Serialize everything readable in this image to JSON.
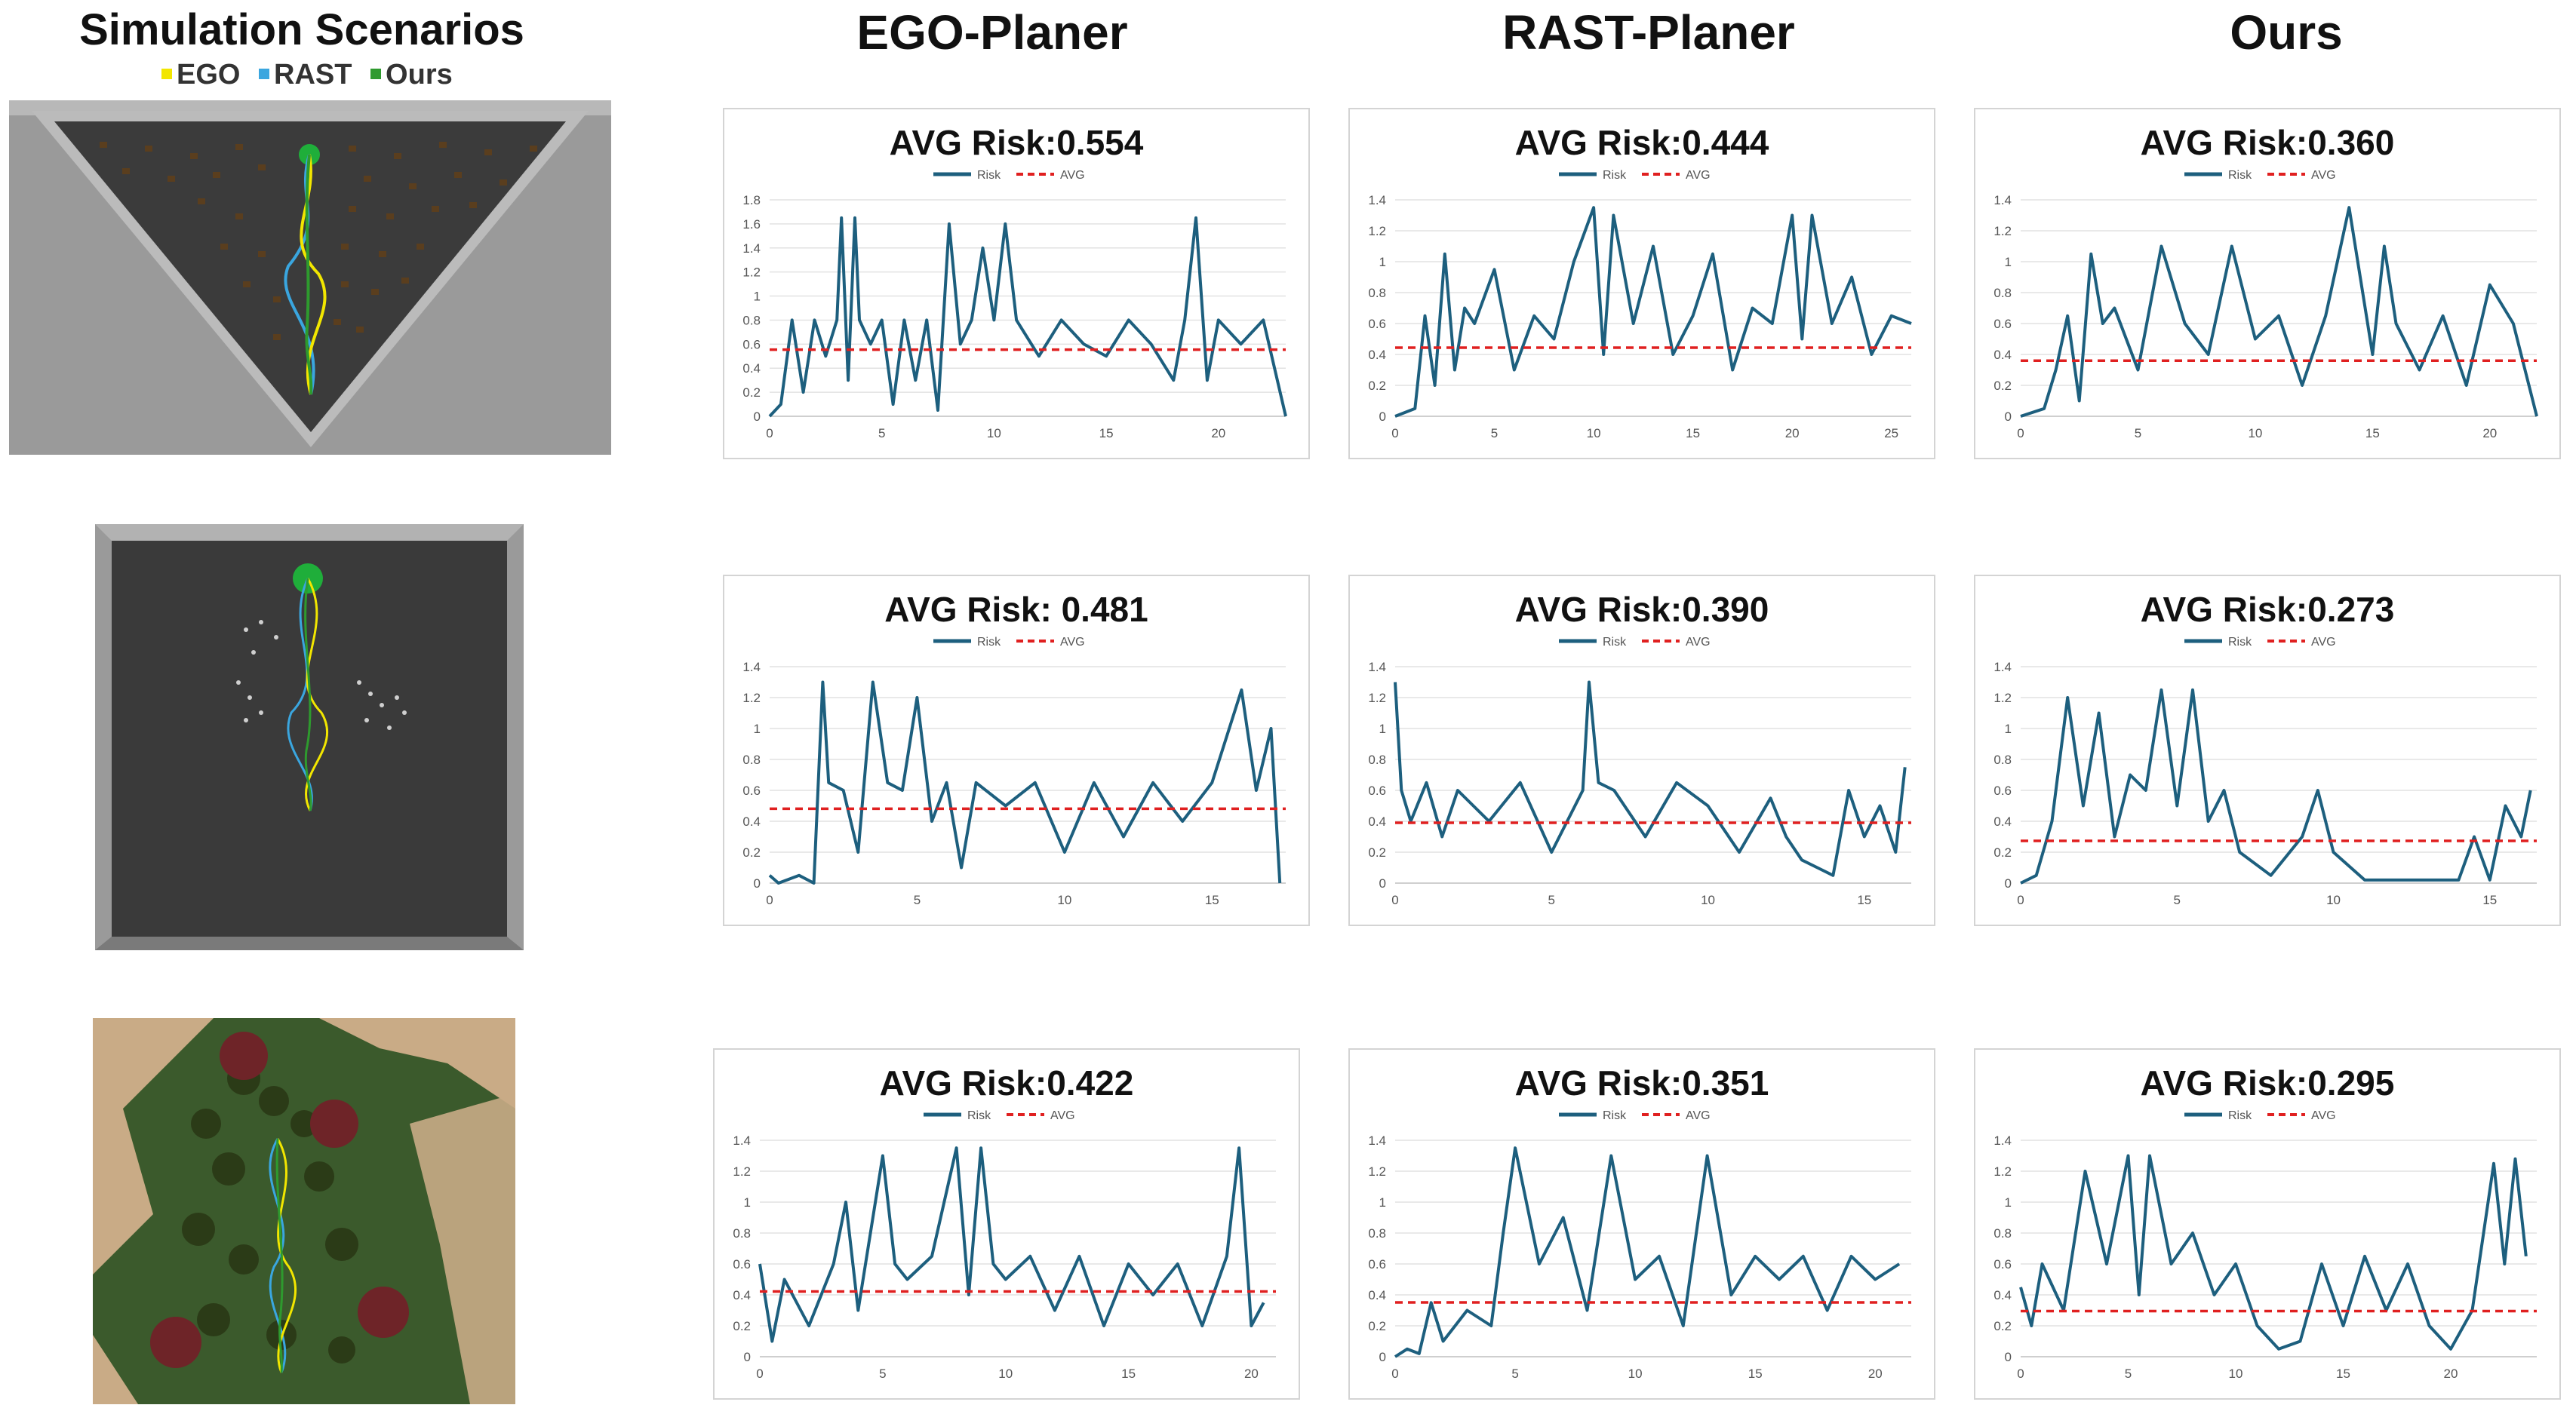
{
  "header": {
    "scenarios_title": "Simulation Scenarios",
    "columns": [
      "EGO-Planer",
      "RAST-Planer",
      "Ours"
    ],
    "legend": [
      {
        "label": "EGO",
        "color": "#f2e600"
      },
      {
        "label": "RAST",
        "color": "#3aa6df"
      },
      {
        "label": "Ours",
        "color": "#2e9a2e"
      }
    ]
  },
  "colors": {
    "risk_line": "#1d5f7e",
    "avg_line": "#e02020",
    "grid": "#e2e2e2"
  },
  "chart_data": [
    {
      "type": "line",
      "row": 0,
      "planner": "EGO-Planer",
      "title": "AVG Risk:0.554",
      "legend": [
        "Risk",
        "AVG"
      ],
      "avg": 0.554,
      "xlim": [
        0,
        23
      ],
      "ylim": [
        0,
        1.8
      ],
      "xticks": [
        0,
        5,
        10,
        15,
        20
      ],
      "yticks": [
        0,
        0.2,
        0.4,
        0.6,
        0.8,
        1,
        1.2,
        1.4,
        1.6,
        1.8
      ],
      "series": [
        {
          "name": "Risk",
          "x": [
            0,
            0.5,
            1,
            1.5,
            2,
            2.5,
            3,
            3.2,
            3.5,
            3.8,
            4,
            4.5,
            5,
            5.5,
            6,
            6.5,
            7,
            7.5,
            8,
            8.5,
            9,
            9.5,
            10,
            10.5,
            11,
            12,
            13,
            14,
            15,
            16,
            17,
            18,
            18.5,
            19,
            19.5,
            20,
            21,
            22,
            23
          ],
          "y": [
            0,
            0.1,
            0.8,
            0.2,
            0.8,
            0.5,
            0.8,
            1.65,
            0.3,
            1.65,
            0.8,
            0.6,
            0.8,
            0.1,
            0.8,
            0.3,
            0.8,
            0.05,
            1.6,
            0.6,
            0.8,
            1.4,
            0.8,
            1.6,
            0.8,
            0.5,
            0.8,
            0.6,
            0.5,
            0.8,
            0.6,
            0.3,
            0.8,
            1.65,
            0.3,
            0.8,
            0.6,
            0.8,
            0
          ]
        },
        {
          "name": "AVG",
          "x": [
            0,
            23
          ],
          "y": [
            0.554,
            0.554
          ]
        }
      ]
    },
    {
      "type": "line",
      "row": 0,
      "planner": "RAST-Planer",
      "title": "AVG Risk:0.444",
      "legend": [
        "Risk",
        "AVG"
      ],
      "avg": 0.444,
      "xlim": [
        0,
        26
      ],
      "ylim": [
        0,
        1.4
      ],
      "xticks": [
        0,
        5,
        10,
        15,
        20,
        25
      ],
      "yticks": [
        0,
        0.2,
        0.4,
        0.6,
        0.8,
        1,
        1.2,
        1.4
      ],
      "series": [
        {
          "name": "Risk",
          "x": [
            0,
            1,
            1.5,
            2,
            2.5,
            3,
            3.5,
            4,
            5,
            6,
            7,
            8,
            9,
            10,
            10.5,
            11,
            12,
            13,
            14,
            15,
            16,
            17,
            18,
            19,
            20,
            20.5,
            21,
            22,
            23,
            24,
            25,
            26
          ],
          "y": [
            0,
            0.05,
            0.65,
            0.2,
            1.05,
            0.3,
            0.7,
            0.6,
            0.95,
            0.3,
            0.65,
            0.5,
            1.0,
            1.35,
            0.4,
            1.3,
            0.6,
            1.1,
            0.4,
            0.65,
            1.05,
            0.3,
            0.7,
            0.6,
            1.3,
            0.5,
            1.3,
            0.6,
            0.9,
            0.4,
            0.65,
            0.6
          ]
        },
        {
          "name": "AVG",
          "x": [
            0,
            26
          ],
          "y": [
            0.444,
            0.444
          ]
        }
      ]
    },
    {
      "type": "line",
      "row": 0,
      "planner": "Ours",
      "title": "AVG Risk:0.360",
      "legend": [
        "Risk",
        "AVG"
      ],
      "avg": 0.36,
      "xlim": [
        0,
        22
      ],
      "ylim": [
        0,
        1.4
      ],
      "xticks": [
        0,
        5,
        10,
        15,
        20
      ],
      "yticks": [
        0,
        0.2,
        0.4,
        0.6,
        0.8,
        1,
        1.2,
        1.4
      ],
      "series": [
        {
          "name": "Risk",
          "x": [
            0,
            1,
            1.5,
            2,
            2.5,
            3,
            3.5,
            4,
            5,
            6,
            7,
            8,
            9,
            10,
            11,
            12,
            13,
            14,
            15,
            15.5,
            16,
            17,
            18,
            19,
            20,
            21,
            22
          ],
          "y": [
            0,
            0.05,
            0.3,
            0.65,
            0.1,
            1.05,
            0.6,
            0.7,
            0.3,
            1.1,
            0.6,
            0.4,
            1.1,
            0.5,
            0.65,
            0.2,
            0.65,
            1.35,
            0.4,
            1.1,
            0.6,
            0.3,
            0.65,
            0.2,
            0.85,
            0.6,
            0
          ]
        },
        {
          "name": "AVG",
          "x": [
            0,
            22
          ],
          "y": [
            0.36,
            0.36
          ]
        }
      ]
    },
    {
      "type": "line",
      "row": 1,
      "planner": "EGO-Planer",
      "title": "AVG Risk: 0.481",
      "legend": [
        "Risk",
        "AVG"
      ],
      "avg": 0.481,
      "xlim": [
        0,
        17.5
      ],
      "ylim": [
        0,
        1.4
      ],
      "xticks": [
        0,
        5,
        10,
        15
      ],
      "yticks": [
        0,
        0.2,
        0.4,
        0.6,
        0.8,
        1,
        1.2,
        1.4
      ],
      "series": [
        {
          "name": "Risk",
          "x": [
            0,
            0.3,
            1,
            1.5,
            1.8,
            2,
            2.5,
            3,
            3.5,
            4,
            4.5,
            5,
            5.5,
            6,
            6.5,
            7,
            8,
            9,
            10,
            11,
            12,
            13,
            14,
            15,
            16,
            16.5,
            17,
            17.3
          ],
          "y": [
            0.05,
            0,
            0.05,
            0,
            1.3,
            0.65,
            0.6,
            0.2,
            1.3,
            0.65,
            0.6,
            1.2,
            0.4,
            0.65,
            0.1,
            0.65,
            0.5,
            0.65,
            0.2,
            0.65,
            0.3,
            0.65,
            0.4,
            0.65,
            1.25,
            0.6,
            1.0,
            0
          ]
        },
        {
          "name": "AVG",
          "x": [
            0,
            17.5
          ],
          "y": [
            0.481,
            0.481
          ]
        }
      ]
    },
    {
      "type": "line",
      "row": 1,
      "planner": "RAST-Planer",
      "title": "AVG Risk:0.390",
      "legend": [
        "Risk",
        "AVG"
      ],
      "avg": 0.39,
      "xlim": [
        0,
        16.5
      ],
      "ylim": [
        0,
        1.4
      ],
      "xticks": [
        0,
        5,
        10,
        15
      ],
      "yticks": [
        0,
        0.2,
        0.4,
        0.6,
        0.8,
        1,
        1.2,
        1.4
      ],
      "series": [
        {
          "name": "Risk",
          "x": [
            0,
            0.2,
            0.5,
            1,
            1.5,
            2,
            3,
            4,
            5,
            6,
            6.2,
            6.5,
            7,
            8,
            9,
            10,
            11,
            12,
            12.5,
            13,
            14,
            14.5,
            15,
            15.5,
            16,
            16.3
          ],
          "y": [
            1.3,
            0.6,
            0.4,
            0.65,
            0.3,
            0.6,
            0.4,
            0.65,
            0.2,
            0.6,
            1.3,
            0.65,
            0.6,
            0.3,
            0.65,
            0.5,
            0.2,
            0.55,
            0.3,
            0.15,
            0.05,
            0.6,
            0.3,
            0.5,
            0.2,
            0.75
          ]
        },
        {
          "name": "AVG",
          "x": [
            0,
            16.5
          ],
          "y": [
            0.39,
            0.39
          ]
        }
      ]
    },
    {
      "type": "line",
      "row": 1,
      "planner": "Ours",
      "title": "AVG Risk:0.273",
      "legend": [
        "Risk",
        "AVG"
      ],
      "avg": 0.273,
      "xlim": [
        0,
        16.5
      ],
      "ylim": [
        0,
        1.4
      ],
      "xticks": [
        0,
        5,
        10,
        15
      ],
      "yticks": [
        0,
        0.2,
        0.4,
        0.6,
        0.8,
        1,
        1.2,
        1.4
      ],
      "series": [
        {
          "name": "Risk",
          "x": [
            0,
            0.5,
            1,
            1.5,
            2,
            2.5,
            3,
            3.5,
            4,
            4.5,
            5,
            5.5,
            6,
            6.5,
            7,
            8,
            9,
            9.5,
            10,
            11,
            12,
            13,
            14,
            14.5,
            15,
            15.5,
            16,
            16.3
          ],
          "y": [
            0,
            0.05,
            0.4,
            1.2,
            0.5,
            1.1,
            0.3,
            0.7,
            0.6,
            1.25,
            0.5,
            1.25,
            0.4,
            0.6,
            0.2,
            0.05,
            0.3,
            0.6,
            0.2,
            0.02,
            0.02,
            0.02,
            0.02,
            0.3,
            0.02,
            0.5,
            0.3,
            0.6
          ]
        },
        {
          "name": "AVG",
          "x": [
            0,
            16.5
          ],
          "y": [
            0.273,
            0.273
          ]
        }
      ]
    },
    {
      "type": "line",
      "row": 2,
      "planner": "EGO-Planer",
      "title": "AVG Risk:0.422",
      "legend": [
        "Risk",
        "AVG"
      ],
      "avg": 0.422,
      "xlim": [
        0,
        21
      ],
      "ylim": [
        0,
        1.4
      ],
      "xticks": [
        0,
        5,
        10,
        15,
        20
      ],
      "yticks": [
        0,
        0.2,
        0.4,
        0.6,
        0.8,
        1,
        1.2,
        1.4
      ],
      "series": [
        {
          "name": "Risk",
          "x": [
            0,
            0.5,
            1,
            2,
            3,
            3.5,
            4,
            5,
            5.5,
            6,
            7,
            8,
            8.5,
            9,
            9.5,
            10,
            11,
            12,
            13,
            14,
            15,
            16,
            17,
            18,
            19,
            19.5,
            20,
            20.5
          ],
          "y": [
            0.6,
            0.1,
            0.5,
            0.2,
            0.6,
            1.0,
            0.3,
            1.3,
            0.6,
            0.5,
            0.65,
            1.35,
            0.4,
            1.35,
            0.6,
            0.5,
            0.65,
            0.3,
            0.65,
            0.2,
            0.6,
            0.4,
            0.6,
            0.2,
            0.65,
            1.35,
            0.2,
            0.35
          ]
        },
        {
          "name": "AVG",
          "x": [
            0,
            21
          ],
          "y": [
            0.422,
            0.422
          ]
        }
      ]
    },
    {
      "type": "line",
      "row": 2,
      "planner": "RAST-Planer",
      "title": "AVG Risk:0.351",
      "legend": [
        "Risk",
        "AVG"
      ],
      "avg": 0.351,
      "xlim": [
        0,
        21.5
      ],
      "ylim": [
        0,
        1.4
      ],
      "xticks": [
        0,
        5,
        10,
        15,
        20
      ],
      "yticks": [
        0,
        0.2,
        0.4,
        0.6,
        0.8,
        1,
        1.2,
        1.4
      ],
      "series": [
        {
          "name": "Risk",
          "x": [
            0,
            0.5,
            1,
            1.5,
            2,
            3,
            4,
            4.5,
            5,
            6,
            7,
            8,
            9,
            10,
            11,
            12,
            13,
            14,
            15,
            16,
            17,
            18,
            19,
            20,
            21
          ],
          "y": [
            0,
            0.05,
            0.02,
            0.35,
            0.1,
            0.3,
            0.2,
            0.8,
            1.35,
            0.6,
            0.9,
            0.3,
            1.3,
            0.5,
            0.65,
            0.2,
            1.3,
            0.4,
            0.65,
            0.5,
            0.65,
            0.3,
            0.65,
            0.5,
            0.6
          ]
        },
        {
          "name": "AVG",
          "x": [
            0,
            21.5
          ],
          "y": [
            0.351,
            0.351
          ]
        }
      ]
    },
    {
      "type": "line",
      "row": 2,
      "planner": "Ours",
      "title": "AVG Risk:0.295",
      "legend": [
        "Risk",
        "AVG"
      ],
      "avg": 0.295,
      "xlim": [
        0,
        24
      ],
      "ylim": [
        0,
        1.4
      ],
      "xticks": [
        0,
        5,
        10,
        15,
        20
      ],
      "yticks": [
        0,
        0.2,
        0.4,
        0.6,
        0.8,
        1,
        1.2,
        1.4
      ],
      "series": [
        {
          "name": "Risk",
          "x": [
            0,
            0.5,
            1,
            2,
            3,
            4,
            5,
            5.5,
            6,
            7,
            8,
            9,
            10,
            11,
            12,
            13,
            14,
            15,
            16,
            17,
            18,
            19,
            20,
            21,
            22,
            22.5,
            23,
            23.5
          ],
          "y": [
            0.45,
            0.2,
            0.6,
            0.3,
            1.2,
            0.6,
            1.3,
            0.4,
            1.3,
            0.6,
            0.8,
            0.4,
            0.6,
            0.2,
            0.05,
            0.1,
            0.6,
            0.2,
            0.65,
            0.3,
            0.6,
            0.2,
            0.05,
            0.3,
            1.25,
            0.6,
            1.28,
            0.65
          ]
        },
        {
          "name": "AVG",
          "x": [
            0,
            24
          ],
          "y": [
            0.295,
            0.295
          ]
        }
      ]
    }
  ]
}
